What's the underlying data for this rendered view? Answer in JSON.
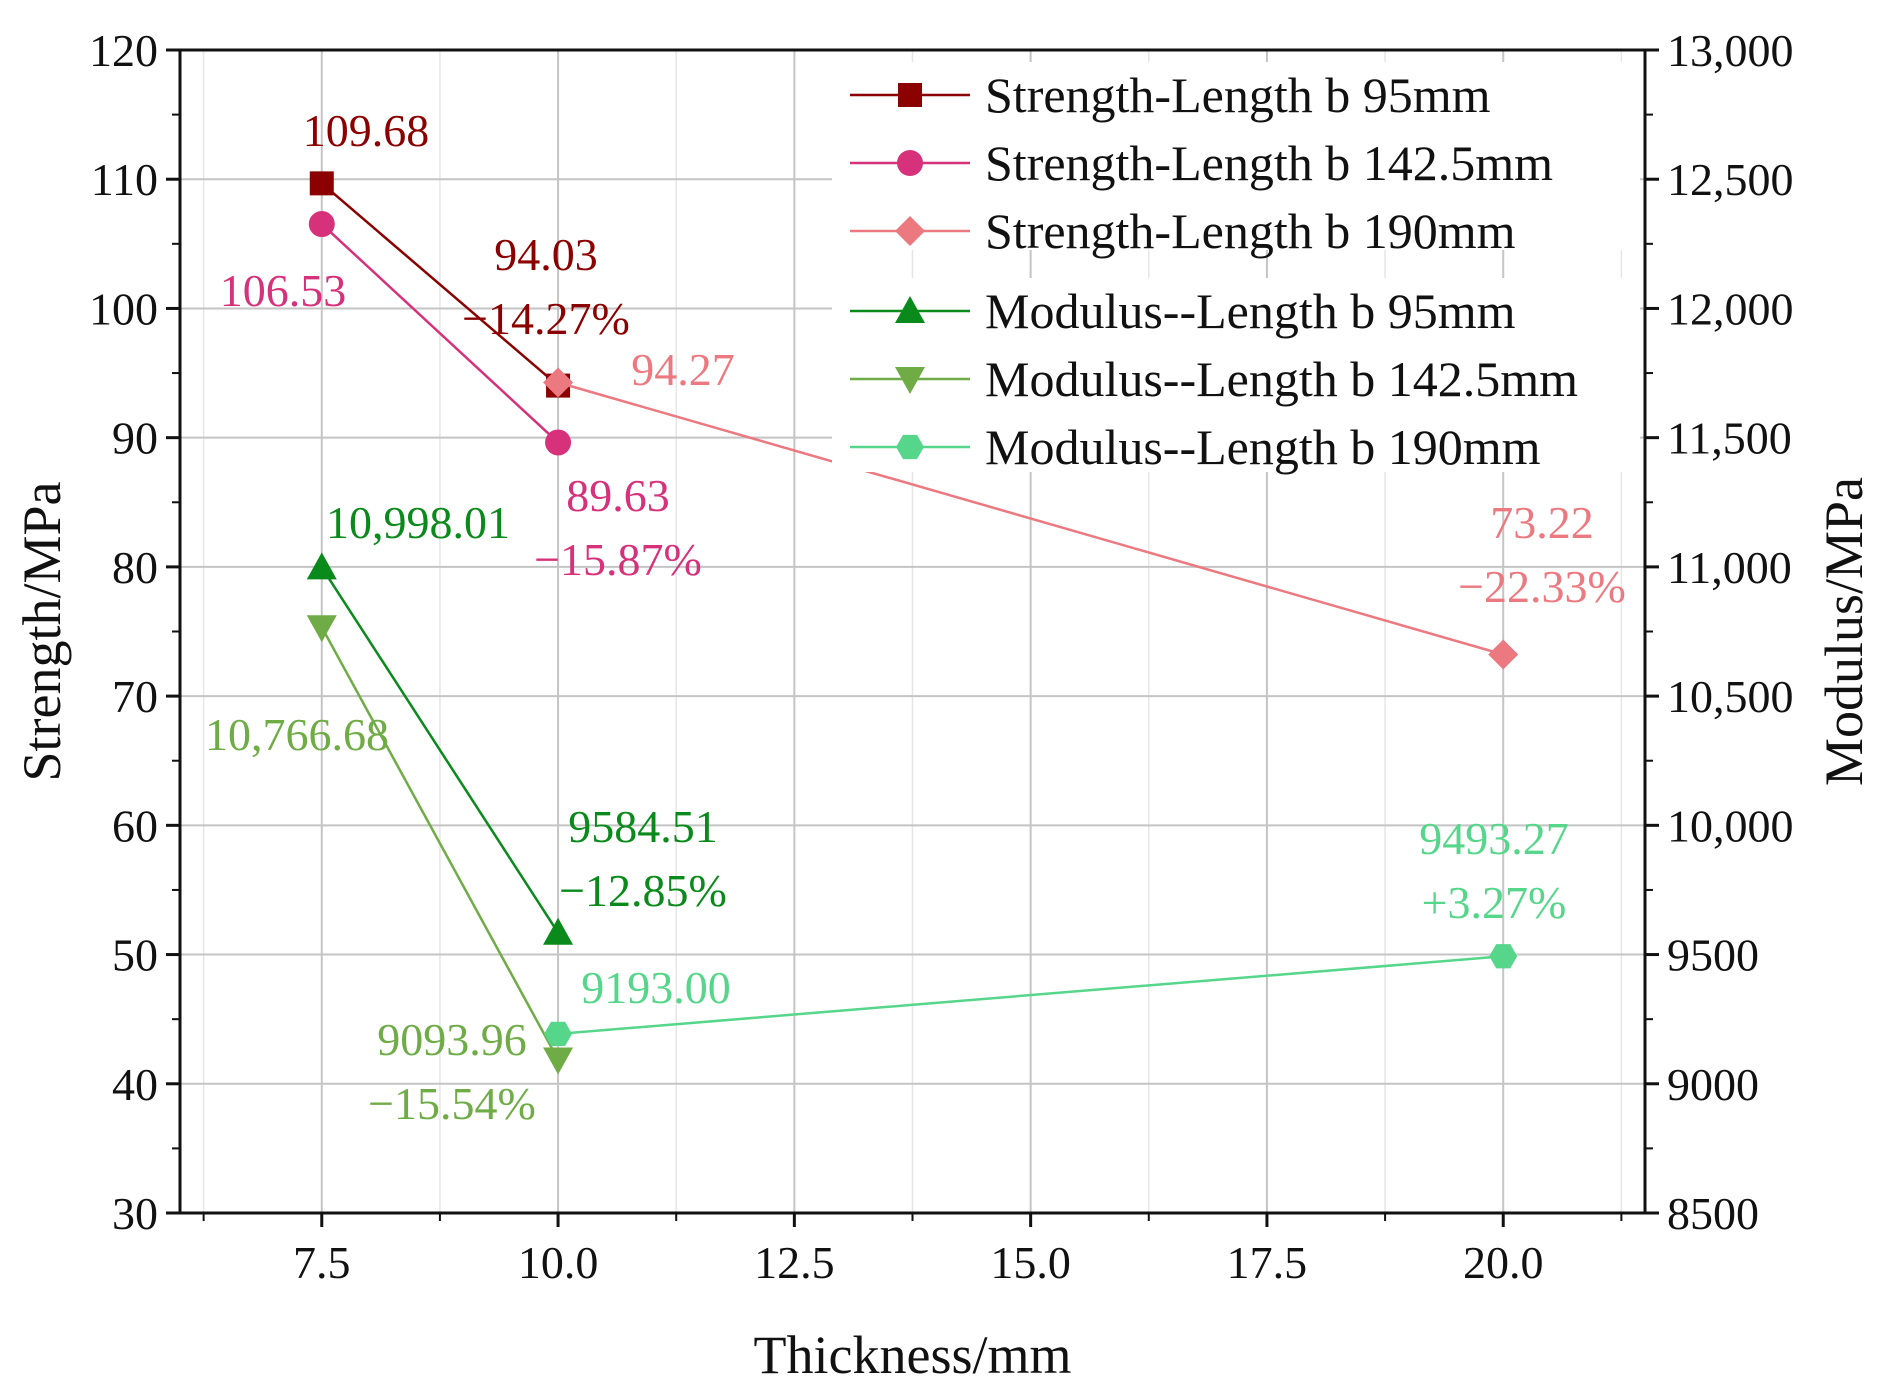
{
  "chart_data": {
    "type": "line",
    "xlabel": "Thickness/mm",
    "ylabel": "Strength/MPa",
    "y2label": "Modulus/MPa",
    "xlim": [
      6.0,
      21.5
    ],
    "ylim": [
      30,
      120
    ],
    "y2lim": [
      8500,
      13000
    ],
    "xticks": [
      {
        "value": 7.5,
        "label": "7.5"
      },
      {
        "value": 10.0,
        "label": "10.0"
      },
      {
        "value": 12.5,
        "label": "12.5"
      },
      {
        "value": 15.0,
        "label": "15.0"
      },
      {
        "value": 17.5,
        "label": "17.5"
      },
      {
        "value": 20.0,
        "label": "20.0"
      }
    ],
    "yticks": [
      {
        "value": 30,
        "label": "30"
      },
      {
        "value": 40,
        "label": "40"
      },
      {
        "value": 50,
        "label": "50"
      },
      {
        "value": 60,
        "label": "60"
      },
      {
        "value": 70,
        "label": "70"
      },
      {
        "value": 80,
        "label": "80"
      },
      {
        "value": 90,
        "label": "90"
      },
      {
        "value": 100,
        "label": "100"
      },
      {
        "value": 110,
        "label": "110"
      },
      {
        "value": 120,
        "label": "120"
      }
    ],
    "y2ticks": [
      {
        "value": 8500,
        "label": "8500"
      },
      {
        "value": 9000,
        "label": "9000"
      },
      {
        "value": 9500,
        "label": "9500"
      },
      {
        "value": 10000,
        "label": "10,000"
      },
      {
        "value": 10500,
        "label": "10,500"
      },
      {
        "value": 11000,
        "label": "11,000"
      },
      {
        "value": 11500,
        "label": "11,500"
      },
      {
        "value": 12000,
        "label": "12,000"
      },
      {
        "value": 12500,
        "label": "12,500"
      },
      {
        "value": 13000,
        "label": "13,000"
      }
    ],
    "grid": true,
    "legend_position": "top-right",
    "series": [
      {
        "name": "Strength-Length b 95mm",
        "axis": "left",
        "marker": "square",
        "color": "#8b0000",
        "x": [
          7.5,
          10.0
        ],
        "y": [
          109.68,
          94.03
        ]
      },
      {
        "name": "Strength-Length b 142.5mm",
        "axis": "left",
        "marker": "circle",
        "color": "#d6317a",
        "x": [
          7.5,
          10.0
        ],
        "y": [
          106.53,
          89.63
        ]
      },
      {
        "name": "Strength-Length b 190mm",
        "axis": "left",
        "marker": "diamond",
        "color": "#ec7880",
        "x": [
          10.0,
          20.0
        ],
        "y": [
          94.27,
          73.22
        ]
      },
      {
        "name": "Modulus--Length b 95mm",
        "axis": "right",
        "marker": "triangle-up",
        "color": "#0b8a1c",
        "x": [
          7.5,
          10.0
        ],
        "y": [
          10998.01,
          9584.51
        ]
      },
      {
        "name": "Modulus--Length b 142.5mm",
        "axis": "right",
        "marker": "triangle-down",
        "color": "#6fac46",
        "x": [
          7.5,
          10.0
        ],
        "y": [
          10766.68,
          9093.96
        ]
      },
      {
        "name": "Modulus--Length b 190mm",
        "axis": "right",
        "marker": "hexagon",
        "color": "#56d68a",
        "x": [
          10.0,
          20.0
        ],
        "y": [
          9193.0,
          9493.27
        ]
      }
    ],
    "annotations": [
      {
        "series": 0,
        "lines": [
          "109.68"
        ]
      },
      {
        "series": 0,
        "lines": [
          "94.03",
          "−14.27%"
        ]
      },
      {
        "series": 1,
        "lines": [
          "106.53"
        ]
      },
      {
        "series": 1,
        "lines": [
          "89.63",
          "−15.87%"
        ]
      },
      {
        "series": 2,
        "lines": [
          "94.27"
        ]
      },
      {
        "series": 2,
        "lines": [
          "73.22",
          "−22.33%"
        ]
      },
      {
        "series": 3,
        "lines": [
          "10,998.01"
        ]
      },
      {
        "series": 3,
        "lines": [
          "9584.51",
          "−12.85%"
        ]
      },
      {
        "series": 4,
        "lines": [
          "10,766.68"
        ]
      },
      {
        "series": 4,
        "lines": [
          "9093.96",
          "−15.54%"
        ]
      },
      {
        "series": 5,
        "lines": [
          "9193.00"
        ]
      },
      {
        "series": 5,
        "lines": [
          "9493.27",
          "+3.27%"
        ]
      }
    ]
  }
}
